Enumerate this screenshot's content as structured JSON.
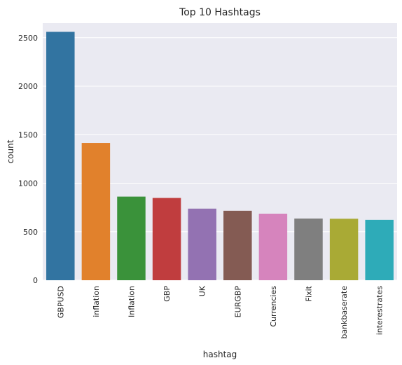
{
  "chart_data": {
    "type": "bar",
    "title": "Top 10 Hashtags",
    "xlabel": "hashtag",
    "ylabel": "count",
    "ylim": [
      0,
      2650
    ],
    "yticks": [
      0,
      500,
      1000,
      1500,
      2000,
      2500
    ],
    "grid": true,
    "categories": [
      "GBPUSD",
      "inflation",
      "Inflation",
      "GBP",
      "UK",
      "EURGBP",
      "Currencies",
      "Fixit",
      "bankbaserate",
      "interestrates"
    ],
    "values": [
      2560,
      1415,
      862,
      848,
      738,
      716,
      686,
      636,
      634,
      622
    ],
    "colors": [
      "#3274a1",
      "#e1812c",
      "#3a923a",
      "#c03d3e",
      "#9372b2",
      "#845b53",
      "#d684bd",
      "#7f7f7f",
      "#a9aa35",
      "#2eabb8"
    ],
    "background": "#eaeaf2"
  }
}
